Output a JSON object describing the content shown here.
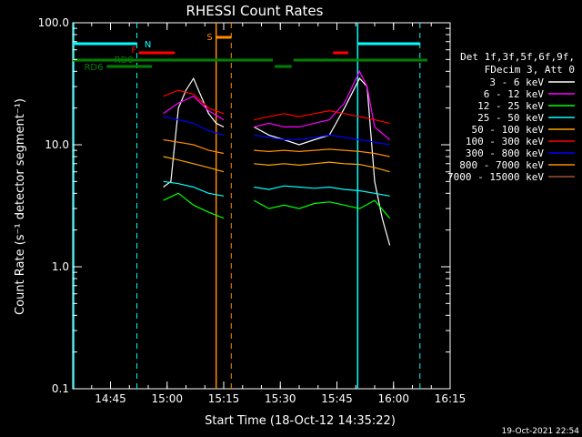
{
  "chart_data": {
    "type": "line",
    "title": "RHESSI Count Rates",
    "xlabel": "Start Time (18-Oct-12 14:35:22)",
    "ylabel": "Count Rate (s⁻¹ detector segment⁻¹)",
    "yscale": "log",
    "ylim": [
      0.1,
      100.0
    ],
    "xlim_minutes_after_1435": [
      0,
      100
    ],
    "x_ticks": [
      "14:45",
      "15:00",
      "15:15",
      "15:30",
      "15:45",
      "16:00",
      "16:15"
    ],
    "x_tick_minutes_after_1435": [
      10,
      25,
      40,
      55,
      70,
      85,
      100
    ],
    "y_ticks": [
      "0.1",
      "1.0",
      "10.0",
      "100.0"
    ],
    "y_tick_values": [
      0.1,
      1.0,
      10.0,
      100.0
    ],
    "legend_header": [
      "Det 1f,3f,5f,6f,9f,",
      "FDecim 3, Att 0"
    ],
    "legend_placement": "right",
    "timestamp": "19-Oct-2021 22:54",
    "grid": false,
    "series": [
      {
        "name": "3 - 6 keV",
        "color": "#ffffff",
        "x": [
          24,
          26,
          28,
          30,
          32,
          34,
          36,
          38,
          40,
          48,
          52,
          56,
          60,
          64,
          68,
          72,
          76,
          78,
          80,
          82,
          84
        ],
        "y": [
          4.5,
          5.0,
          20,
          28,
          35,
          25,
          18,
          15,
          14,
          14,
          12,
          11,
          10,
          11,
          12,
          20,
          35,
          30,
          5,
          2.5,
          1.5
        ]
      },
      {
        "name": "6 - 12 keV",
        "color": "#ff00ff",
        "x": [
          24,
          28,
          32,
          36,
          40,
          48,
          52,
          56,
          60,
          64,
          68,
          72,
          76,
          78,
          80,
          84
        ],
        "y": [
          18,
          22,
          25,
          19,
          16,
          14,
          15,
          14,
          14,
          15,
          16,
          22,
          40,
          30,
          14,
          11
        ]
      },
      {
        "name": "12 - 25 keV",
        "color": "#00ff00",
        "x": [
          24,
          28,
          32,
          36,
          40,
          48,
          52,
          56,
          60,
          64,
          68,
          72,
          76,
          80,
          84
        ],
        "y": [
          3.5,
          4.0,
          3.2,
          2.8,
          2.5,
          3.5,
          3.0,
          3.2,
          3.0,
          3.3,
          3.4,
          3.2,
          3.0,
          3.5,
          2.5
        ]
      },
      {
        "name": "25 - 50 keV",
        "color": "#00ffff",
        "x": [
          24,
          28,
          32,
          36,
          40,
          48,
          52,
          56,
          60,
          64,
          68,
          72,
          76,
          80,
          84
        ],
        "y": [
          5.0,
          4.8,
          4.5,
          4.0,
          3.8,
          4.5,
          4.3,
          4.6,
          4.5,
          4.4,
          4.5,
          4.3,
          4.2,
          4.0,
          3.8
        ]
      },
      {
        "name": "50 - 100 keV",
        "color": "#ffa500",
        "x": [
          24,
          28,
          32,
          36,
          40,
          48,
          52,
          56,
          60,
          64,
          68,
          72,
          76,
          80,
          84
        ],
        "y": [
          8.0,
          7.5,
          7.0,
          6.5,
          6.0,
          7.0,
          6.8,
          7.0,
          6.8,
          7.0,
          7.2,
          7.0,
          6.9,
          6.5,
          6.0
        ]
      },
      {
        "name": "100 - 300 keV",
        "color": "#ff0000",
        "x": [
          24,
          28,
          32,
          36,
          40,
          48,
          52,
          56,
          60,
          64,
          68,
          72,
          76,
          80,
          84
        ],
        "y": [
          25,
          28,
          26,
          20,
          18,
          16,
          17,
          18,
          17,
          18,
          19,
          18,
          17,
          16,
          15
        ]
      },
      {
        "name": "300 - 800 keV",
        "color": "#0000ff",
        "x": [
          24,
          28,
          32,
          36,
          40,
          48,
          52,
          56,
          60,
          64,
          68,
          72,
          76,
          80,
          84
        ],
        "y": [
          17,
          16,
          15,
          13,
          12,
          12,
          11.5,
          11,
          11,
          11.5,
          12,
          11.5,
          11,
          10.5,
          10
        ]
      },
      {
        "name": "800 - 7000 keV",
        "color": "#ff8c00",
        "x": [
          24,
          28,
          32,
          36,
          40,
          48,
          52,
          56,
          60,
          64,
          68,
          72,
          76,
          80,
          84
        ],
        "y": [
          11,
          10.5,
          10,
          9.0,
          8.5,
          9.0,
          8.8,
          9.0,
          8.8,
          9.0,
          9.2,
          9.0,
          8.8,
          8.5,
          8.0
        ]
      },
      {
        "name": "7000 - 15000 keV",
        "color": "#a0522d",
        "x": [],
        "y": []
      }
    ],
    "annotations": [
      {
        "text": "N",
        "color": "#00ffff"
      },
      {
        "text": "F",
        "color": "#ff0000"
      },
      {
        "text": "S",
        "color": "#ff8c00"
      },
      {
        "text": "RD0",
        "color": "#008000"
      },
      {
        "text": "RD6",
        "color": "#008000"
      }
    ]
  }
}
